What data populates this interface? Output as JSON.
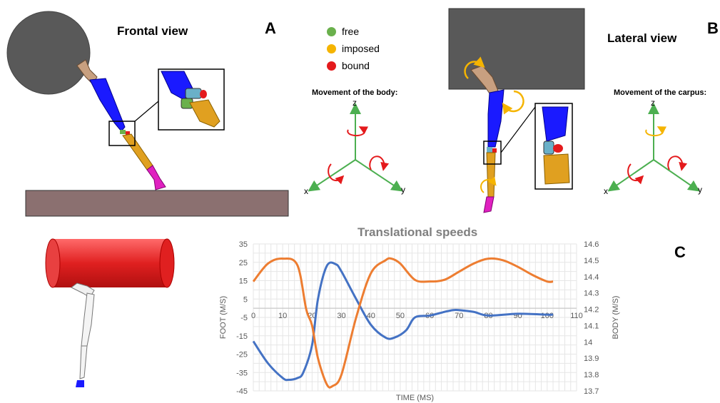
{
  "panel_a": {
    "letter": "A",
    "title": "Frontal view",
    "movement_title": "Movement of the body:",
    "axes": {
      "x": "x",
      "y": "y",
      "z": "z"
    }
  },
  "panel_b": {
    "letter": "B",
    "title": "Lateral view",
    "movement_title": "Movement of the carpus:",
    "axes": {
      "x": "x",
      "y": "y",
      "z": "z"
    }
  },
  "panel_c": {
    "letter": "C"
  },
  "legend": [
    {
      "label": "free",
      "color": "#6ab04c"
    },
    {
      "label": "imposed",
      "color": "#f5b400"
    },
    {
      "label": "bound",
      "color": "#e41a1c"
    }
  ],
  "colors": {
    "body_segment": "#1a1aff",
    "distal_segment": "#e0a020",
    "hoof": "#e020c0",
    "bone_top": "#c8a080",
    "ground": "#8b7070",
    "sphere": "#595959",
    "block": "#595959",
    "cylinder": "#e02020",
    "free_arrow": "#e41a1c",
    "imposed_arrow": "#f5b400",
    "axis_green": "#4caf50",
    "foot_series": "#4472c4",
    "body_series": "#ed7d31"
  },
  "chart_data": {
    "type": "line",
    "title": "Translational speeds",
    "xlabel": "TIME (MS)",
    "ylabel": "FOOT (M/S)",
    "y2label": "BODY (M/S)",
    "xlim": [
      0,
      110
    ],
    "ylim": [
      -45,
      35
    ],
    "y2lim": [
      13.7,
      14.6
    ],
    "x_ticks": [
      0,
      10,
      20,
      30,
      40,
      50,
      60,
      70,
      80,
      90,
      100,
      110
    ],
    "y_ticks": [
      35,
      25,
      15,
      5,
      -5,
      -15,
      -25,
      -35,
      -45
    ],
    "y2_ticks": [
      "14.6",
      "14.5",
      "14.4",
      "14.3",
      "14.2",
      "14.1",
      "14",
      "13.9",
      "13.8",
      "13.7"
    ],
    "grid": true,
    "series": [
      {
        "name": "FOOT",
        "axis": "left",
        "color": "#4472c4",
        "x": [
          0,
          5,
          10,
          12,
          15,
          17,
          20,
          22,
          25,
          28,
          30,
          35,
          40,
          45,
          48,
          52,
          55,
          60,
          65,
          68,
          70,
          75,
          80,
          90,
          100,
          102
        ],
        "y": [
          -18,
          -30,
          -38,
          -39,
          -38,
          -35,
          -20,
          5,
          23,
          24,
          20,
          5,
          -9,
          -16,
          -16,
          -12,
          -5,
          -4,
          -2,
          -1,
          -1,
          -2,
          -4,
          -3,
          -3.5,
          -3.5
        ]
      },
      {
        "name": "BODY",
        "axis": "right",
        "color": "#ed7d31",
        "x": [
          0,
          5,
          10,
          15,
          18,
          20,
          22,
          25,
          27,
          30,
          35,
          40,
          45,
          47,
          50,
          55,
          60,
          65,
          70,
          75,
          80,
          85,
          90,
          95,
          100,
          102
        ],
        "y": [
          14.37,
          14.48,
          14.51,
          14.47,
          14.2,
          14.1,
          13.9,
          13.74,
          13.73,
          13.8,
          14.15,
          14.42,
          14.5,
          14.51,
          14.48,
          14.38,
          14.37,
          14.38,
          14.43,
          14.48,
          14.51,
          14.5,
          14.46,
          14.41,
          14.37,
          14.37
        ]
      }
    ]
  }
}
